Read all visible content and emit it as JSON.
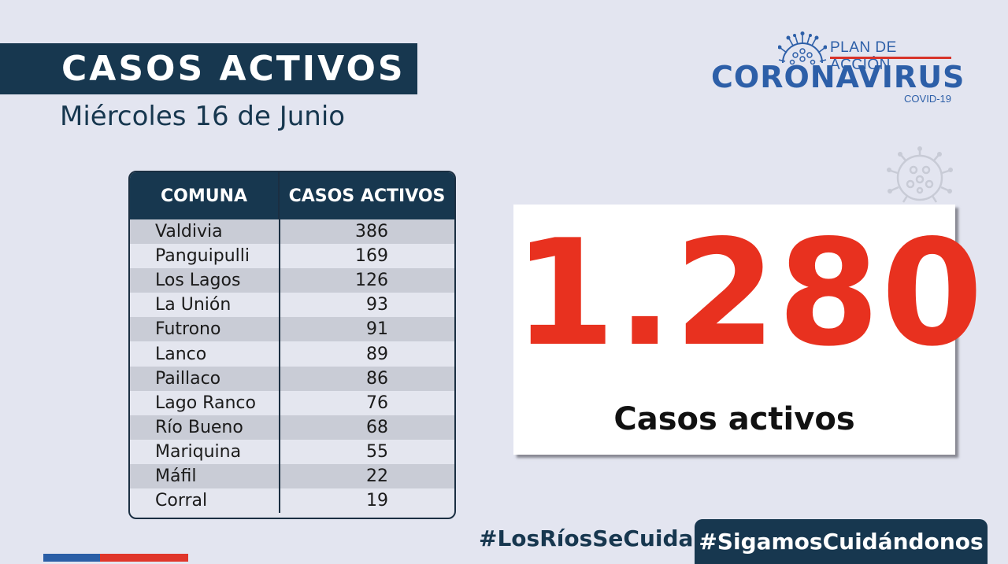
{
  "header": {
    "title": "CASOS ACTIVOS",
    "date": "Miércoles 16 de Junio"
  },
  "logo": {
    "plan": "PLAN DE ACCIÓN",
    "name": "CORONAVIRUS",
    "sub": "COVID-19"
  },
  "table": {
    "headers": [
      "COMUNA",
      "CASOS ACTIVOS"
    ],
    "rows": [
      {
        "comuna": "Valdivia",
        "casos": "386"
      },
      {
        "comuna": "Panguipulli",
        "casos": "169"
      },
      {
        "comuna": "Los Lagos",
        "casos": "126"
      },
      {
        "comuna": "La Unión",
        "casos": "93"
      },
      {
        "comuna": "Futrono",
        "casos": "91"
      },
      {
        "comuna": "Lanco",
        "casos": "89"
      },
      {
        "comuna": "Paillaco",
        "casos": "86"
      },
      {
        "comuna": "Lago Ranco",
        "casos": "76"
      },
      {
        "comuna": "Río Bueno",
        "casos": "68"
      },
      {
        "comuna": "Mariquina",
        "casos": "55"
      },
      {
        "comuna": "Máfil",
        "casos": "22"
      },
      {
        "comuna": "Corral",
        "casos": "19"
      }
    ]
  },
  "total": {
    "value": "1.280",
    "label": "Casos activos"
  },
  "footer": {
    "hashtag_1": "#LosRíosSeCuida",
    "hashtag_2": "#SigamosCuidándonos"
  },
  "colors": {
    "navy": "#17374f",
    "accent_red": "#e8311f",
    "brand_blue": "#2d5fa8",
    "background": "#e3e5f0"
  }
}
